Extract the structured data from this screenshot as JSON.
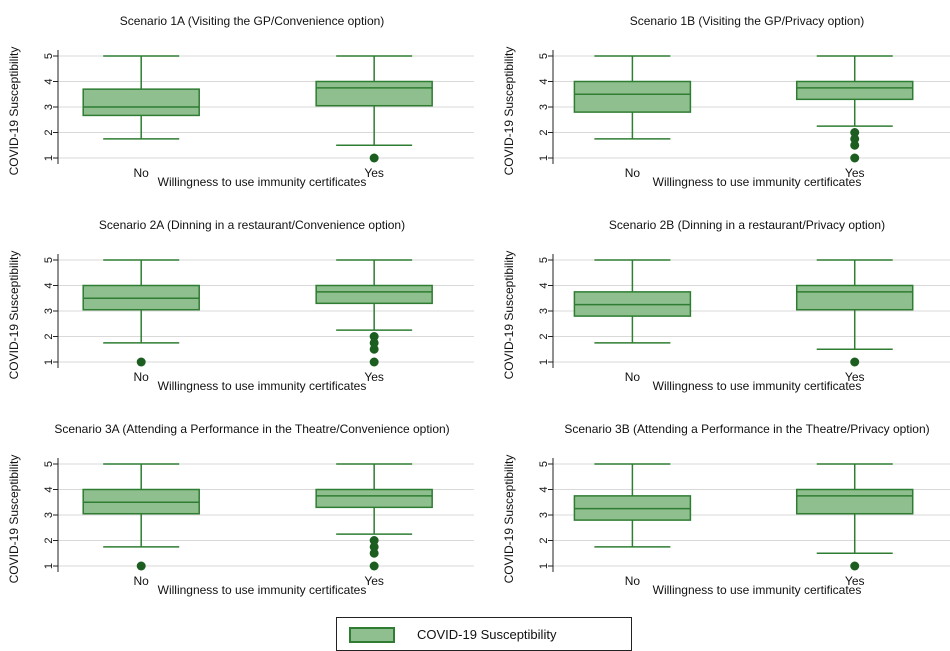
{
  "colors": {
    "box_fill": "#8fbf8f",
    "box_stroke": "#2e7d32",
    "outlier": "#1b5e20",
    "grid": "#d9d9d9",
    "axis": "#222222"
  },
  "chart_data": [
    {
      "type": "box",
      "title": "Scenario 1A (Visiting the GP/Convenience option)",
      "xlabel": "Willingness to use immunity certificates",
      "ylabel": "COVID-19 Susceptibility",
      "categories": [
        "No",
        "Yes"
      ],
      "yticks": [
        "1",
        "2",
        "3",
        "4",
        "5"
      ],
      "ylim": [
        1,
        5
      ],
      "boxes": [
        {
          "category": "No",
          "whisker_low": 1.75,
          "q1": 2.67,
          "median": 3.0,
          "q3": 3.7,
          "whisker_high": 5,
          "outliers": []
        },
        {
          "category": "Yes",
          "whisker_low": 1.5,
          "q1": 3.05,
          "median": 3.75,
          "q3": 4.0,
          "whisker_high": 5,
          "outliers": [
            1
          ]
        }
      ]
    },
    {
      "type": "box",
      "title": "Scenario 1B (Visiting the GP/Privacy option)",
      "xlabel": "Willingness to use immunity certificates",
      "ylabel": "COVID-19 Susceptibility",
      "categories": [
        "No",
        "Yes"
      ],
      "yticks": [
        "1",
        "2",
        "3",
        "4",
        "5"
      ],
      "ylim": [
        1,
        5
      ],
      "boxes": [
        {
          "category": "No",
          "whisker_low": 1.75,
          "q1": 2.8,
          "median": 3.5,
          "q3": 4.0,
          "whisker_high": 5,
          "outliers": []
        },
        {
          "category": "Yes",
          "whisker_low": 2.25,
          "q1": 3.3,
          "median": 3.75,
          "q3": 4.0,
          "whisker_high": 5,
          "outliers": [
            2,
            1.75,
            1.5,
            1
          ]
        }
      ]
    },
    {
      "type": "box",
      "title": "Scenario 2A (Dinning in a restaurant/Convenience option)",
      "xlabel": "Willingness to use immunity certificates",
      "ylabel": "COVID-19 Susceptibility",
      "categories": [
        "No",
        "Yes"
      ],
      "yticks": [
        "1",
        "2",
        "3",
        "4",
        "5"
      ],
      "ylim": [
        1,
        5
      ],
      "boxes": [
        {
          "category": "No",
          "whisker_low": 1.75,
          "q1": 3.05,
          "median": 3.5,
          "q3": 4.0,
          "whisker_high": 5,
          "outliers": [
            1
          ]
        },
        {
          "category": "Yes",
          "whisker_low": 2.25,
          "q1": 3.3,
          "median": 3.75,
          "q3": 4.0,
          "whisker_high": 5,
          "outliers": [
            2,
            1.75,
            1.5,
            1
          ]
        }
      ]
    },
    {
      "type": "box",
      "title": "Scenario 2B (Dinning in a restaurant/Privacy option)",
      "xlabel": "Willingness to use immunity certificates",
      "ylabel": "COVID-19 Susceptibility",
      "categories": [
        "No",
        "Yes"
      ],
      "yticks": [
        "1",
        "2",
        "3",
        "4",
        "5"
      ],
      "ylim": [
        1,
        5
      ],
      "boxes": [
        {
          "category": "No",
          "whisker_low": 1.75,
          "q1": 2.8,
          "median": 3.25,
          "q3": 3.75,
          "whisker_high": 5,
          "outliers": []
        },
        {
          "category": "Yes",
          "whisker_low": 1.5,
          "q1": 3.05,
          "median": 3.75,
          "q3": 4.0,
          "whisker_high": 5,
          "outliers": [
            1
          ]
        }
      ]
    },
    {
      "type": "box",
      "title": "Scenario 3A (Attending a Performance in the Theatre/Convenience option)",
      "xlabel": "Willingness to use immunity certificates",
      "ylabel": "COVID-19 Susceptibility",
      "categories": [
        "No",
        "Yes"
      ],
      "yticks": [
        "1",
        "2",
        "3",
        "4",
        "5"
      ],
      "ylim": [
        1,
        5
      ],
      "boxes": [
        {
          "category": "No",
          "whisker_low": 1.75,
          "q1": 3.05,
          "median": 3.5,
          "q3": 4.0,
          "whisker_high": 5,
          "outliers": [
            1
          ]
        },
        {
          "category": "Yes",
          "whisker_low": 2.25,
          "q1": 3.3,
          "median": 3.75,
          "q3": 4.0,
          "whisker_high": 5,
          "outliers": [
            2,
            1.75,
            1.5,
            1
          ]
        }
      ]
    },
    {
      "type": "box",
      "title": "Scenario 3B (Attending a Performance in the Theatre/Privacy option)",
      "xlabel": "Willingness to use immunity certificates",
      "ylabel": "COVID-19 Susceptibility",
      "categories": [
        "No",
        "Yes"
      ],
      "yticks": [
        "1",
        "2",
        "3",
        "4",
        "5"
      ],
      "ylim": [
        1,
        5
      ],
      "boxes": [
        {
          "category": "No",
          "whisker_low": 1.75,
          "q1": 2.8,
          "median": 3.25,
          "q3": 3.75,
          "whisker_high": 5,
          "outliers": []
        },
        {
          "category": "Yes",
          "whisker_low": 1.5,
          "q1": 3.05,
          "median": 3.75,
          "q3": 4.0,
          "whisker_high": 5,
          "outliers": [
            1
          ]
        }
      ]
    }
  ],
  "legend": {
    "label": "COVID-19 Susceptibility",
    "placement": "bottom-center"
  }
}
